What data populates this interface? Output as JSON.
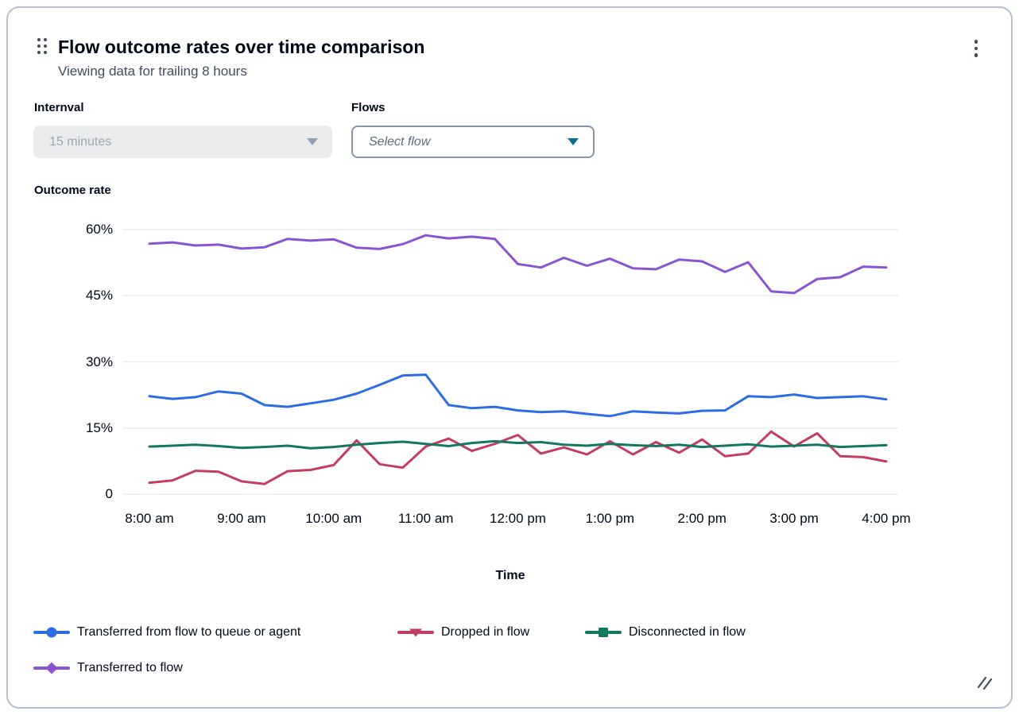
{
  "card": {
    "title": "Flow outcome rates over time comparison",
    "subtitle": "Viewing data for trailing 8 hours"
  },
  "controls": {
    "interval": {
      "label": "Internval",
      "value": "15 minutes",
      "state": "disabled"
    },
    "flows": {
      "label": "Flows",
      "placeholder": "Select flow"
    }
  },
  "colors": {
    "accent_caret": "#0e7090",
    "gridline": "#e9ebee",
    "icon": "#414d5c",
    "blue": "#2e6ce4",
    "crimson": "#c33d63",
    "teal": "#137860",
    "purple": "#8a54d1"
  },
  "chart_data": {
    "type": "line",
    "title": "Outcome rate",
    "xlabel": "Time",
    "ylabel": "Outcome rate",
    "ylim": [
      0,
      62
    ],
    "grid": "horizontal",
    "legend_position": "bottom",
    "x_start": "8:00 am",
    "x_end": "4:00 pm",
    "x_interval_minutes": 15,
    "x_tick_labels": [
      "8:00 am",
      "9:00 am",
      "10:00 am",
      "11:00 am",
      "12:00 pm",
      "1:00 pm",
      "2:00 pm",
      "3:00 pm",
      "4:00 pm"
    ],
    "y_ticks": [
      {
        "label": "0",
        "value": 0
      },
      {
        "label": "15%",
        "value": 15
      },
      {
        "label": "30%",
        "value": 30
      },
      {
        "label": "45%",
        "value": 45
      },
      {
        "label": "60%",
        "value": 60
      }
    ],
    "series": [
      {
        "name": "Transferred from flow to queue or agent",
        "color": "#2e6ce4",
        "marker": "circle",
        "values": [
          22.2,
          21.6,
          22.0,
          23.3,
          22.8,
          20.2,
          19.8,
          20.6,
          21.4,
          22.8,
          24.8,
          26.9,
          27.1,
          20.2,
          19.5,
          19.8,
          19.0,
          18.6,
          18.8,
          18.2,
          17.7,
          18.8,
          18.5,
          18.3,
          18.9,
          19.0,
          22.2,
          22.0,
          22.6,
          21.8,
          22.0,
          22.2,
          21.5
        ]
      },
      {
        "name": "Dropped in flow",
        "color": "#c33d63",
        "marker": "triangle-down",
        "values": [
          2.6,
          3.1,
          5.3,
          5.1,
          2.9,
          2.3,
          5.2,
          5.5,
          6.6,
          12.2,
          6.8,
          6.0,
          10.8,
          12.6,
          9.8,
          11.4,
          13.4,
          9.2,
          10.6,
          9.0,
          12.0,
          9.0,
          11.8,
          9.4,
          12.4,
          8.6,
          9.2,
          14.2,
          10.8,
          13.8,
          8.6,
          8.4,
          7.4
        ]
      },
      {
        "name": "Disconnected in flow",
        "color": "#137860",
        "marker": "square",
        "values": [
          10.8,
          11.0,
          11.2,
          10.9,
          10.5,
          10.7,
          11.0,
          10.4,
          10.7,
          11.2,
          11.6,
          11.9,
          11.4,
          10.9,
          11.6,
          12.0,
          11.6,
          11.8,
          11.2,
          11.0,
          11.4,
          11.1,
          10.9,
          11.2,
          10.7,
          11.0,
          11.3,
          10.8,
          11.0,
          11.2,
          10.7,
          10.9,
          11.1
        ]
      },
      {
        "name": "Transferred to flow",
        "color": "#8a54d1",
        "marker": "diamond",
        "values": [
          56.8,
          57.1,
          56.4,
          56.6,
          55.7,
          56.0,
          57.9,
          57.5,
          57.8,
          55.9,
          55.6,
          56.7,
          58.7,
          58.0,
          58.4,
          57.9,
          52.2,
          51.4,
          53.6,
          51.8,
          53.4,
          51.2,
          51.0,
          53.2,
          52.8,
          50.4,
          52.6,
          46.0,
          45.6,
          48.8,
          49.2,
          51.6,
          51.4
        ]
      }
    ]
  }
}
